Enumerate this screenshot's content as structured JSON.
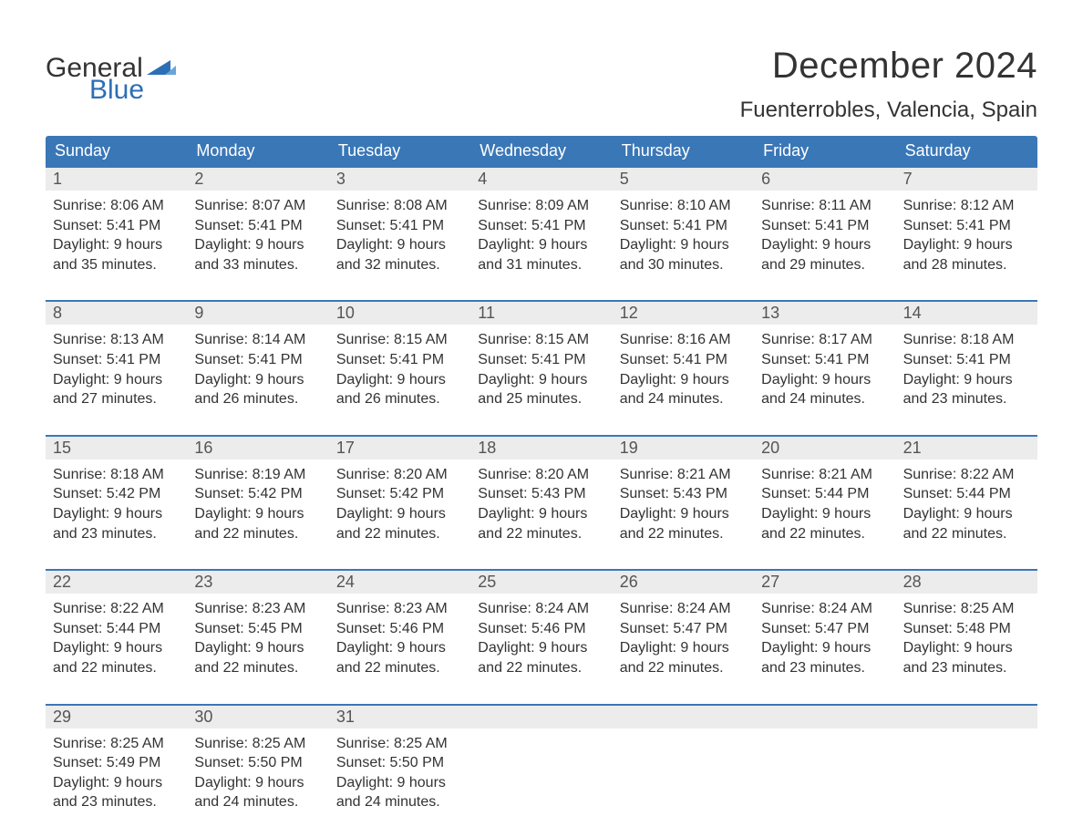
{
  "logo": {
    "word1": "General",
    "word2": "Blue"
  },
  "title": "December 2024",
  "location": "Fuenterrobles, Valencia, Spain",
  "colors": {
    "header_bg": "#3a77b7",
    "header_text": "#ffffff",
    "daynum_bg": "#ececec",
    "body_text": "#333333",
    "week_border": "#3a77b7",
    "logo_blue": "#2d6fb5"
  },
  "day_names": [
    "Sunday",
    "Monday",
    "Tuesday",
    "Wednesday",
    "Thursday",
    "Friday",
    "Saturday"
  ],
  "weeks": [
    [
      {
        "n": "1",
        "sunrise": "8:06 AM",
        "sunset": "5:41 PM",
        "dh": "9",
        "dm": "35"
      },
      {
        "n": "2",
        "sunrise": "8:07 AM",
        "sunset": "5:41 PM",
        "dh": "9",
        "dm": "33"
      },
      {
        "n": "3",
        "sunrise": "8:08 AM",
        "sunset": "5:41 PM",
        "dh": "9",
        "dm": "32"
      },
      {
        "n": "4",
        "sunrise": "8:09 AM",
        "sunset": "5:41 PM",
        "dh": "9",
        "dm": "31"
      },
      {
        "n": "5",
        "sunrise": "8:10 AM",
        "sunset": "5:41 PM",
        "dh": "9",
        "dm": "30"
      },
      {
        "n": "6",
        "sunrise": "8:11 AM",
        "sunset": "5:41 PM",
        "dh": "9",
        "dm": "29"
      },
      {
        "n": "7",
        "sunrise": "8:12 AM",
        "sunset": "5:41 PM",
        "dh": "9",
        "dm": "28"
      }
    ],
    [
      {
        "n": "8",
        "sunrise": "8:13 AM",
        "sunset": "5:41 PM",
        "dh": "9",
        "dm": "27"
      },
      {
        "n": "9",
        "sunrise": "8:14 AM",
        "sunset": "5:41 PM",
        "dh": "9",
        "dm": "26"
      },
      {
        "n": "10",
        "sunrise": "8:15 AM",
        "sunset": "5:41 PM",
        "dh": "9",
        "dm": "26"
      },
      {
        "n": "11",
        "sunrise": "8:15 AM",
        "sunset": "5:41 PM",
        "dh": "9",
        "dm": "25"
      },
      {
        "n": "12",
        "sunrise": "8:16 AM",
        "sunset": "5:41 PM",
        "dh": "9",
        "dm": "24"
      },
      {
        "n": "13",
        "sunrise": "8:17 AM",
        "sunset": "5:41 PM",
        "dh": "9",
        "dm": "24"
      },
      {
        "n": "14",
        "sunrise": "8:18 AM",
        "sunset": "5:41 PM",
        "dh": "9",
        "dm": "23"
      }
    ],
    [
      {
        "n": "15",
        "sunrise": "8:18 AM",
        "sunset": "5:42 PM",
        "dh": "9",
        "dm": "23"
      },
      {
        "n": "16",
        "sunrise": "8:19 AM",
        "sunset": "5:42 PM",
        "dh": "9",
        "dm": "22"
      },
      {
        "n": "17",
        "sunrise": "8:20 AM",
        "sunset": "5:42 PM",
        "dh": "9",
        "dm": "22"
      },
      {
        "n": "18",
        "sunrise": "8:20 AM",
        "sunset": "5:43 PM",
        "dh": "9",
        "dm": "22"
      },
      {
        "n": "19",
        "sunrise": "8:21 AM",
        "sunset": "5:43 PM",
        "dh": "9",
        "dm": "22"
      },
      {
        "n": "20",
        "sunrise": "8:21 AM",
        "sunset": "5:44 PM",
        "dh": "9",
        "dm": "22"
      },
      {
        "n": "21",
        "sunrise": "8:22 AM",
        "sunset": "5:44 PM",
        "dh": "9",
        "dm": "22"
      }
    ],
    [
      {
        "n": "22",
        "sunrise": "8:22 AM",
        "sunset": "5:44 PM",
        "dh": "9",
        "dm": "22"
      },
      {
        "n": "23",
        "sunrise": "8:23 AM",
        "sunset": "5:45 PM",
        "dh": "9",
        "dm": "22"
      },
      {
        "n": "24",
        "sunrise": "8:23 AM",
        "sunset": "5:46 PM",
        "dh": "9",
        "dm": "22"
      },
      {
        "n": "25",
        "sunrise": "8:24 AM",
        "sunset": "5:46 PM",
        "dh": "9",
        "dm": "22"
      },
      {
        "n": "26",
        "sunrise": "8:24 AM",
        "sunset": "5:47 PM",
        "dh": "9",
        "dm": "22"
      },
      {
        "n": "27",
        "sunrise": "8:24 AM",
        "sunset": "5:47 PM",
        "dh": "9",
        "dm": "23"
      },
      {
        "n": "28",
        "sunrise": "8:25 AM",
        "sunset": "5:48 PM",
        "dh": "9",
        "dm": "23"
      }
    ],
    [
      {
        "n": "29",
        "sunrise": "8:25 AM",
        "sunset": "5:49 PM",
        "dh": "9",
        "dm": "23"
      },
      {
        "n": "30",
        "sunrise": "8:25 AM",
        "sunset": "5:50 PM",
        "dh": "9",
        "dm": "24"
      },
      {
        "n": "31",
        "sunrise": "8:25 AM",
        "sunset": "5:50 PM",
        "dh": "9",
        "dm": "24"
      },
      null,
      null,
      null,
      null
    ]
  ],
  "labels": {
    "sunrise": "Sunrise:",
    "sunset": "Sunset:",
    "daylight": "Daylight:",
    "hours": "hours",
    "and": "and",
    "minutes": "minutes."
  }
}
